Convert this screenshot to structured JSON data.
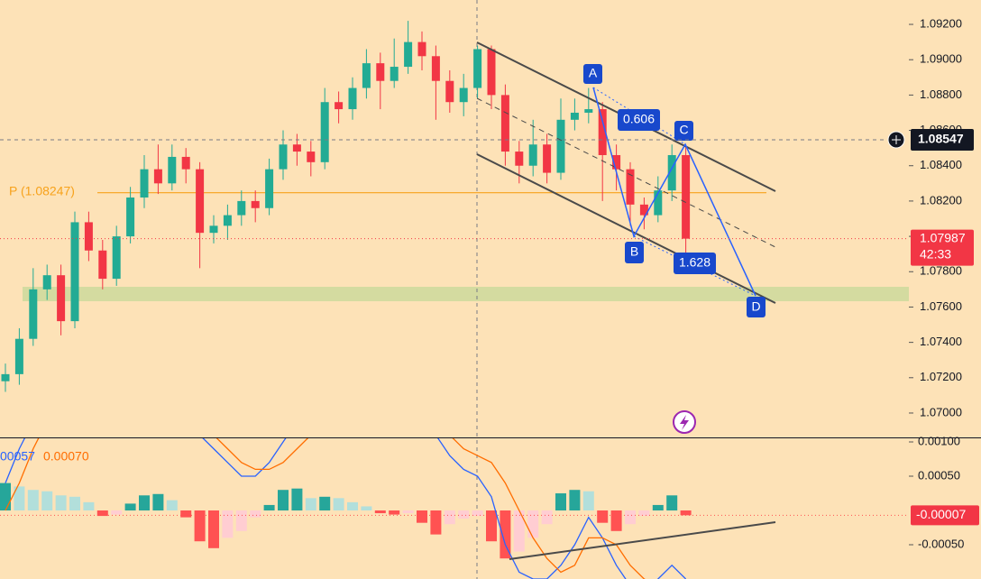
{
  "chart_data": [
    {
      "type": "candlestick",
      "open": [
        1.0718,
        1.0722,
        1.0742,
        1.077,
        1.0778,
        1.0752,
        1.0808,
        1.0792,
        1.0776,
        1.08,
        1.0822,
        1.0838,
        1.083,
        1.0845,
        1.0838,
        1.0802,
        1.0806,
        1.0812,
        1.082,
        1.0816,
        1.0838,
        1.0852,
        1.0848,
        1.0842,
        1.0876,
        1.0872,
        1.0884,
        1.0898,
        1.0888,
        1.0896,
        1.091,
        1.0902,
        1.0888,
        1.0876,
        1.0884,
        1.0906,
        1.088,
        1.0848,
        1.084,
        1.0852,
        1.0836,
        1.0866,
        1.087,
        1.0872,
        1.0846,
        1.0838,
        1.0818,
        1.0812,
        1.0826,
        1.0846
      ],
      "high": [
        1.0728,
        1.0748,
        1.0782,
        1.0784,
        1.0784,
        1.0814,
        1.0814,
        1.0798,
        1.0806,
        1.0828,
        1.0846,
        1.0852,
        1.0852,
        1.085,
        1.0842,
        1.0812,
        1.0818,
        1.0826,
        1.0826,
        1.0844,
        1.086,
        1.0858,
        1.0854,
        1.0884,
        1.0882,
        1.089,
        1.0906,
        1.0904,
        1.0912,
        1.0922,
        1.0916,
        1.0908,
        1.0894,
        1.0892,
        1.0908,
        1.0908,
        1.0886,
        1.0854,
        1.0866,
        1.0858,
        1.0878,
        1.0878,
        1.0884,
        1.0876,
        1.0852,
        1.0842,
        1.0822,
        1.0834,
        1.0852,
        1.0852
      ],
      "low": [
        1.0712,
        1.0716,
        1.0738,
        1.0764,
        1.0744,
        1.0748,
        1.0786,
        1.077,
        1.0772,
        1.0796,
        1.0816,
        1.0824,
        1.0826,
        1.083,
        1.0782,
        1.0796,
        1.0798,
        1.0806,
        1.0808,
        1.0812,
        1.0832,
        1.084,
        1.0834,
        1.0838,
        1.0864,
        1.0866,
        1.0878,
        1.0872,
        1.0884,
        1.0892,
        1.0894,
        1.0866,
        1.087,
        1.0868,
        1.0878,
        1.0872,
        1.084,
        1.083,
        1.0834,
        1.083,
        1.0832,
        1.086,
        1.0864,
        1.082,
        1.0826,
        1.0806,
        1.0804,
        1.0808,
        1.082,
        1.079
      ],
      "close": [
        1.0722,
        1.0742,
        1.077,
        1.0778,
        1.0752,
        1.0808,
        1.0792,
        1.0776,
        1.08,
        1.0822,
        1.0838,
        1.083,
        1.0845,
        1.0838,
        1.0802,
        1.0806,
        1.0812,
        1.082,
        1.0816,
        1.0838,
        1.0852,
        1.0848,
        1.0842,
        1.0876,
        1.0872,
        1.0884,
        1.0898,
        1.0888,
        1.0896,
        1.091,
        1.0902,
        1.0888,
        1.0876,
        1.0884,
        1.0906,
        1.088,
        1.0848,
        1.084,
        1.0852,
        1.0836,
        1.0866,
        1.087,
        1.0872,
        1.0846,
        1.0838,
        1.0818,
        1.0812,
        1.0826,
        1.0846,
        1.07987
      ],
      "up_color": "#22ab94",
      "down_color": "#f23645",
      "ylim": [
        1.06862,
        1.09338
      ],
      "yticks": [
        {
          "value": 1.07,
          "label": "1.07000"
        },
        {
          "value": 1.072,
          "label": "1.07200"
        },
        {
          "value": 1.074,
          "label": "1.07400"
        },
        {
          "value": 1.076,
          "label": "1.07600"
        },
        {
          "value": 1.078,
          "label": "1.07800"
        },
        {
          "value": 1.08,
          "label": "1.08000"
        },
        {
          "value": 1.082,
          "label": "1.08200"
        },
        {
          "value": 1.084,
          "label": "1.08400"
        },
        {
          "value": 1.086,
          "label": "1.08600"
        },
        {
          "value": 1.088,
          "label": "1.08800"
        },
        {
          "value": 1.09,
          "label": "1.09000"
        },
        {
          "value": 1.092,
          "label": "1.09200"
        }
      ],
      "pivot": 1.08247,
      "pivot_label": "P (1.08247)",
      "crosshair_price": 1.08547,
      "last_price": 1.07987,
      "countdown": "42:33",
      "pattern_points": [
        "A",
        "B",
        "C",
        "D"
      ],
      "pattern_ratios": [
        0.606,
        1.628
      ]
    },
    {
      "type": "macd",
      "legend_labels": [
        "00057",
        "0.00070"
      ],
      "histogram": [
        0.0004,
        0.00035,
        0.0003,
        0.00028,
        0.00022,
        0.0002,
        0.00012,
        -8e-05,
        -6e-05,
        0.0001,
        0.00022,
        0.00024,
        0.00015,
        -0.0001,
        -0.00045,
        -0.00055,
        -0.0004,
        -0.0003,
        -0.0001,
        8e-05,
        0.0003,
        0.00032,
        0.00018,
        0.0002,
        0.00018,
        0.00012,
        6e-05,
        -4e-05,
        -6e-05,
        -4e-05,
        -0.00018,
        -0.00035,
        -0.0002,
        -0.00012,
        -8e-05,
        -0.00045,
        -0.0007,
        -0.0006,
        -0.0004,
        -0.0002,
        0.00025,
        0.0003,
        0.00028,
        -0.00018,
        -0.0003,
        -0.0002,
        -8e-05,
        8e-05,
        0.00022,
        -7e-05
      ],
      "macd": [
        0.0004,
        0.0009,
        0.0013,
        0.0014,
        0.0014,
        0.0014,
        0.0013,
        0.0012,
        0.0012,
        0.0013,
        0.0014,
        0.0014,
        0.0014,
        0.0013,
        0.0011,
        0.0009,
        0.0007,
        0.0005,
        0.0005,
        0.0007,
        0.001,
        0.0013,
        0.0014,
        0.0014,
        0.0014,
        0.0014,
        0.0014,
        0.0014,
        0.0014,
        0.0014,
        0.0013,
        0.0011,
        0.0008,
        0.0006,
        0.0005,
        0.0002,
        -0.0005,
        -0.0009,
        -0.001,
        -0.001,
        -0.0008,
        -0.0005,
        -0.0001,
        -0.0004,
        -0.0008,
        -0.0011,
        -0.0012,
        -0.001,
        -0.0008,
        -0.001
      ],
      "signal": [
        0.0,
        0.0004,
        0.0009,
        0.0013,
        0.0014,
        0.0014,
        0.0014,
        0.0014,
        0.0014,
        0.0014,
        0.0014,
        0.0014,
        0.0014,
        0.0014,
        0.0013,
        0.0011,
        0.0009,
        0.0007,
        0.0006,
        0.0006,
        0.0007,
        0.0009,
        0.0011,
        0.0013,
        0.0014,
        0.0014,
        0.0014,
        0.0014,
        0.0014,
        0.0014,
        0.0014,
        0.0013,
        0.0011,
        0.0009,
        0.0008,
        0.0007,
        0.0004,
        0.0,
        -0.0004,
        -0.0007,
        -0.0009,
        -0.0008,
        -0.0004,
        -0.0004,
        -0.0005,
        -0.0008,
        -0.001,
        -0.0011,
        -0.0011,
        -0.0012
      ],
      "macd_color": "#2962ff",
      "signal_color": "#ff6d00",
      "histogram_colors": [
        "#26a69a",
        "#b2dfdb",
        "#ff5252",
        "#ffcdd2"
      ],
      "ylim": [
        -0.001,
        0.001066
      ],
      "yticks": [
        {
          "value": 0.001,
          "label": "0.00100"
        },
        {
          "value": 0.0005,
          "label": "0.00050"
        },
        {
          "value": -0.0005,
          "label": "-0.00050"
        }
      ],
      "last_value": -7e-05
    }
  ]
}
